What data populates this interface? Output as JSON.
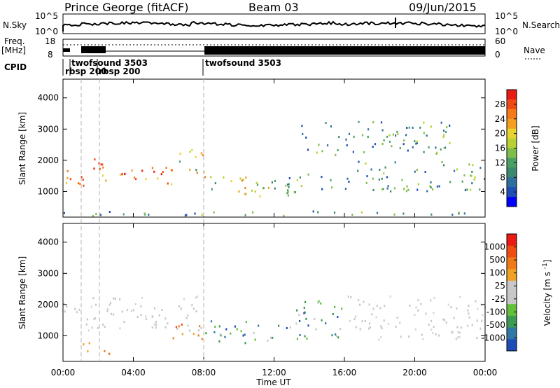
{
  "header": {
    "station": "Prince George (fitACF)",
    "beam": "Beam 03",
    "date": "09/Jun/2015"
  },
  "strips": {
    "nsky_label": "N.Sky",
    "nsearch_label": "N.Search",
    "nsky_ticks": [
      "10^5",
      "10^0"
    ],
    "nsearch_ticks": [
      "10^5",
      "10^0"
    ],
    "freq_label": "Freq.",
    "freq_unit": "[MHz]",
    "freq_ticks": [
      "18",
      "8"
    ],
    "nave_label": "Nave",
    "nave_ticks": [
      "60",
      "0"
    ],
    "cpid_label": "CPID",
    "cpid_segments": [
      {
        "label": "rbsp 200"
      },
      {
        "label": "twofsound 3503"
      },
      {
        "label": "rbsp 200"
      },
      {
        "label": "twofsound 3503"
      }
    ]
  },
  "chart_data": [
    {
      "type": "heatmap",
      "title": "",
      "xlabel": "Time UT",
      "ylabel": "Slant Range [km]",
      "xticks": [
        "00:00",
        "04:00",
        "08:00",
        "12:00",
        "16:00",
        "20:00",
        "00:00"
      ],
      "xlim_hours": [
        0,
        24
      ],
      "yticks": [
        "1000",
        "2000",
        "3000",
        "4000"
      ],
      "ylim": [
        180,
        4600
      ],
      "colorbar": {
        "label": "Power [dB]",
        "ticks": [
          "4",
          "8",
          "12",
          "16",
          "20",
          "24",
          "28"
        ],
        "colors": [
          "#0000ff",
          "#1f4fb4",
          "#2f6fa0",
          "#3c8a6e",
          "#4aa063",
          "#7fbe4a",
          "#b8d032",
          "#e8d22e",
          "#f3a020",
          "#f57a19",
          "#f04a14",
          "#e81a12"
        ]
      },
      "regions": [
        {
          "t0": 0.0,
          "t1": 2.5,
          "r0": 1200,
          "r1": 2100,
          "level": "high"
        },
        {
          "t0": 2.5,
          "t1": 6.5,
          "r0": 1200,
          "r1": 1800,
          "level": "high"
        },
        {
          "t0": 6.5,
          "t1": 8.0,
          "r0": 1500,
          "r1": 2400,
          "level": "medium"
        },
        {
          "t0": 8.0,
          "t1": 12.5,
          "r0": 800,
          "r1": 1500,
          "level": "medium"
        },
        {
          "t0": 12.5,
          "t1": 16.0,
          "r0": 900,
          "r1": 1600,
          "level": "low"
        },
        {
          "t0": 16.0,
          "t1": 24.0,
          "r0": 1000,
          "r1": 2000,
          "level": "low"
        },
        {
          "t0": 0.0,
          "t1": 24.0,
          "r0": 200,
          "r1": 400,
          "level": "low"
        },
        {
          "t0": 13.5,
          "t1": 22.0,
          "r0": 2200,
          "r1": 3300,
          "level": "low"
        }
      ]
    },
    {
      "type": "heatmap",
      "title": "",
      "xlabel": "Time UT",
      "ylabel": "Slant Range [km]",
      "xticks": [
        "00:00",
        "04:00",
        "08:00",
        "12:00",
        "16:00",
        "20:00",
        "00:00"
      ],
      "xlim_hours": [
        0,
        24
      ],
      "yticks": [
        "1000",
        "2000",
        "3000",
        "4000"
      ],
      "ylim": [
        180,
        4600
      ],
      "colorbar": {
        "label": "Velocity [m s^-1]",
        "ticks": [
          "1000",
          "500",
          "100",
          "25",
          "-25",
          "-100",
          "-500",
          "-1000"
        ],
        "colors": [
          "#1d4db4",
          "#2f78a6",
          "#3c9a52",
          "#62c03a",
          "#c8c8c8",
          "#c8c8c8",
          "#f0a022",
          "#f07a18",
          "#ee4c12",
          "#e81a12"
        ]
      },
      "regions": [
        {
          "t0": 0.0,
          "t1": 8.0,
          "r0": 1200,
          "r1": 2300,
          "level": "ground"
        },
        {
          "t0": 1.0,
          "t1": 3.0,
          "r0": 400,
          "r1": 800,
          "level": "toward"
        },
        {
          "t0": 6.0,
          "t1": 8.0,
          "r0": 900,
          "r1": 1500,
          "level": "toward"
        },
        {
          "t0": 8.0,
          "t1": 13.0,
          "r0": 800,
          "r1": 1500,
          "level": "away"
        },
        {
          "t0": 13.0,
          "t1": 16.0,
          "r0": 900,
          "r1": 2200,
          "level": "mixed"
        },
        {
          "t0": 16.0,
          "t1": 24.0,
          "r0": 900,
          "r1": 2300,
          "level": "ground"
        }
      ]
    }
  ],
  "colors": {
    "background": "#ffffff",
    "axis": "#000000",
    "guide_line": "#b0b0b0"
  }
}
